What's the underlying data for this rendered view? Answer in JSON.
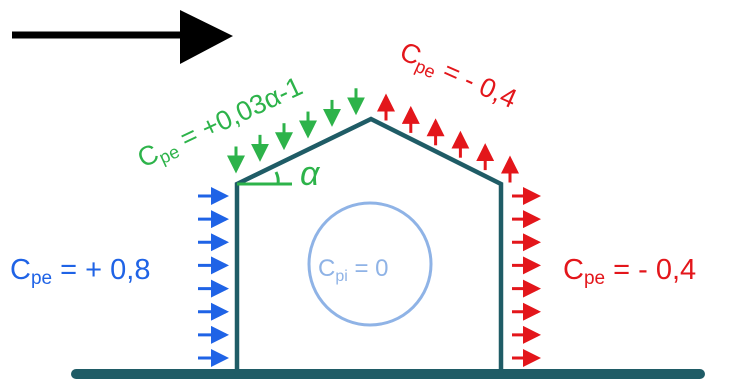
{
  "diagram": {
    "wind_direction": "left-to-right",
    "colors": {
      "wind_arrow": "#000000",
      "structure": "#1f5c66",
      "windward_wall": "#1f63e6",
      "windward_roof": "#2db34a",
      "leeward": "#e3161b",
      "internal": "#8fb3e6"
    },
    "labels": {
      "windward_wall": {
        "main": "C",
        "sub": "pe",
        "rest": " = + 0,8"
      },
      "windward_roof": {
        "main": "C",
        "sub": "pe",
        "rest": " = +0,03α-1"
      },
      "leeward_roof": {
        "main": "C",
        "sub": "pe",
        "rest": " = - 0,4"
      },
      "leeward_wall": {
        "main": "C",
        "sub": "pe",
        "rest": " = - 0,4"
      },
      "internal": {
        "main": "C",
        "sub": "pi",
        "rest": " = 0"
      },
      "roof_angle": "α"
    },
    "pressure_arrows": {
      "windward_wall_count": 8,
      "windward_roof_count": 6,
      "leeward_roof_count": 6,
      "leeward_wall_count": 8
    }
  }
}
